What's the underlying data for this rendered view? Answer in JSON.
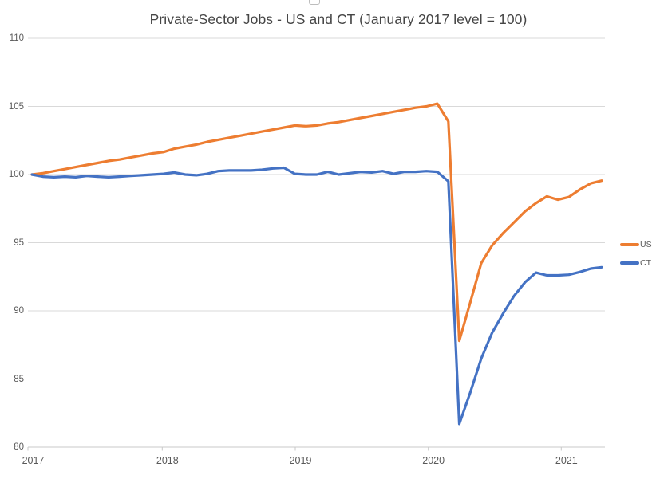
{
  "chart_data": {
    "type": "line",
    "title": "Private-Sector Jobs - US and CT (January 2017 level = 100)",
    "x_unit": "month",
    "x": [
      "2017-01",
      "2017-02",
      "2017-03",
      "2017-04",
      "2017-05",
      "2017-06",
      "2017-07",
      "2017-08",
      "2017-09",
      "2017-10",
      "2017-11",
      "2017-12",
      "2018-01",
      "2018-02",
      "2018-03",
      "2018-04",
      "2018-05",
      "2018-06",
      "2018-07",
      "2018-08",
      "2018-09",
      "2018-10",
      "2018-11",
      "2018-12",
      "2019-01",
      "2019-02",
      "2019-03",
      "2019-04",
      "2019-05",
      "2019-06",
      "2019-07",
      "2019-08",
      "2019-09",
      "2019-10",
      "2019-11",
      "2019-12",
      "2020-01",
      "2020-02",
      "2020-03",
      "2020-04",
      "2020-05",
      "2020-06",
      "2020-07",
      "2020-08",
      "2020-09",
      "2020-10",
      "2020-11",
      "2020-12",
      "2021-01",
      "2021-02",
      "2021-03",
      "2021-04",
      "2021-05"
    ],
    "xticks": [
      "2017",
      "2018",
      "2019",
      "2020",
      "2021"
    ],
    "yticks": [
      110,
      105,
      100,
      95,
      90,
      85,
      80
    ],
    "ylim": [
      80,
      110
    ],
    "grid": "horizontal",
    "legend_position": "right",
    "series": [
      {
        "name": "US",
        "color": "#ED7D31",
        "values": [
          100.0,
          100.1,
          100.25,
          100.4,
          100.55,
          100.7,
          100.85,
          101.0,
          101.1,
          101.25,
          101.4,
          101.55,
          101.65,
          101.9,
          102.05,
          102.2,
          102.4,
          102.55,
          102.7,
          102.85,
          103.0,
          103.15,
          103.3,
          103.45,
          103.6,
          103.55,
          103.6,
          103.75,
          103.85,
          104.0,
          104.15,
          104.3,
          104.45,
          104.6,
          104.75,
          104.9,
          105.0,
          105.2,
          103.9,
          87.8,
          90.6,
          93.5,
          94.8,
          95.7,
          96.5,
          97.3,
          97.9,
          98.4,
          98.15,
          98.35,
          98.9,
          99.35,
          99.55
        ]
      },
      {
        "name": "CT",
        "color": "#4472C4",
        "values": [
          100.0,
          99.85,
          99.8,
          99.85,
          99.8,
          99.9,
          99.85,
          99.8,
          99.85,
          99.9,
          99.95,
          100.0,
          100.05,
          100.15,
          100.0,
          99.95,
          100.05,
          100.25,
          100.3,
          100.3,
          100.3,
          100.35,
          100.45,
          100.5,
          100.05,
          100.0,
          100.0,
          100.2,
          100.0,
          100.1,
          100.2,
          100.15,
          100.25,
          100.05,
          100.2,
          100.2,
          100.25,
          100.2,
          99.5,
          81.7,
          84.0,
          86.5,
          88.4,
          89.8,
          91.1,
          92.1,
          92.8,
          92.6,
          92.6,
          92.65,
          92.85,
          93.1,
          93.2
        ]
      }
    ]
  },
  "colors": {
    "gridline": "#D9D9D9",
    "axis": "#C9C9C9",
    "tick_label": "#595959",
    "title": "#454545",
    "background": "#FFFFFF"
  }
}
